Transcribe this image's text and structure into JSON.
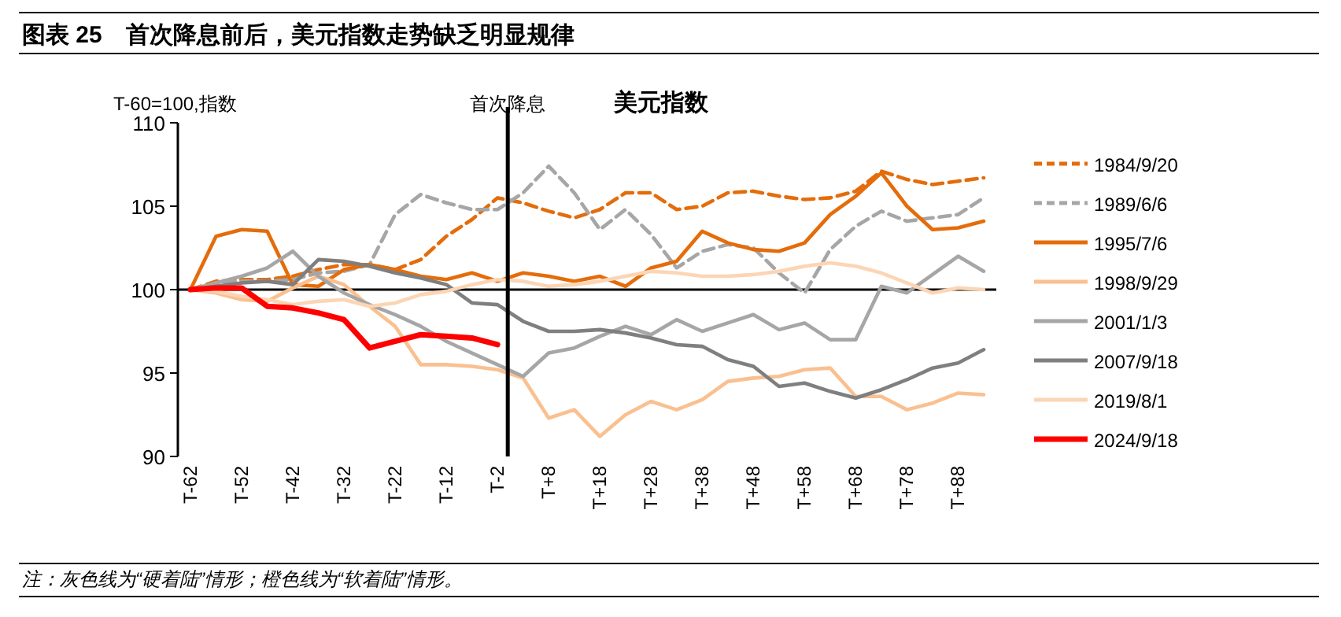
{
  "chart_data": {
    "type": "line",
    "title": "图表 25　首次降息前后，美元指数走势缺乏明显规律",
    "subtitle": "美元指数",
    "ylabel": "T-60=100,指数",
    "annotations": [
      "首次降息",
      "注：灰色线为“硬着陆”情形；橙色线为“软着陆”情形。"
    ],
    "ylim": [
      90,
      110
    ],
    "yticks": [
      90,
      95,
      100,
      105,
      110
    ],
    "categories": [
      "T-62",
      null,
      "T-52",
      null,
      "T-42",
      null,
      "T-32",
      null,
      "T-22",
      null,
      "T-12",
      null,
      "T-2",
      null,
      "T+8",
      null,
      "T+18",
      null,
      "T+28",
      null,
      "T+38",
      null,
      "T+48",
      null,
      "T+58",
      null,
      "T+68",
      null,
      "T+78",
      null,
      "T+88",
      null
    ],
    "ref_lines": [
      {
        "axis": "y",
        "value": 100,
        "color": "#000000"
      }
    ],
    "legend": "right",
    "series": [
      {
        "name": "1984/9/20",
        "color": "#e46c0a",
        "line_style": "dashed",
        "values": [
          100,
          100.5,
          100.6,
          100.6,
          100.8,
          101.2,
          101.5,
          101.5,
          101.2,
          101.8,
          103.2,
          104.2,
          105.5,
          105.2,
          104.7,
          104.3,
          104.8,
          105.8,
          105.8,
          104.8,
          105,
          105.8,
          105.9,
          105.6,
          105.4,
          105.5,
          105.9,
          107.1,
          106.6,
          106.3,
          106.5,
          106.7
        ]
      },
      {
        "name": "1989/6/6",
        "color": "#a6a6a6",
        "line_style": "dashed",
        "values": [
          100,
          100.4,
          100.5,
          100.5,
          100.6,
          101,
          101.1,
          101.5,
          104.5,
          105.7,
          105.2,
          104.8,
          104.8,
          105.8,
          107.4,
          105.8,
          103.6,
          104.8,
          103.3,
          101.3,
          102.3,
          102.7,
          102.5,
          101,
          99.8,
          102.4,
          103.8,
          104.7,
          104.1,
          104.3,
          104.5,
          105.5
        ]
      },
      {
        "name": "1995/7/6",
        "color": "#e46c0a",
        "line_style": "solid",
        "values": [
          100,
          103.2,
          103.6,
          103.5,
          100.3,
          100.2,
          101.2,
          101.5,
          101.2,
          100.8,
          100.6,
          101,
          100.5,
          101,
          100.8,
          100.5,
          100.8,
          100.2,
          101.3,
          101.7,
          103.5,
          102.8,
          102.4,
          102.3,
          102.8,
          104.5,
          105.6,
          107,
          105,
          103.6,
          103.7,
          104.1
        ]
      },
      {
        "name": "1998/9/29",
        "color": "#fac090",
        "line_style": "solid",
        "values": [
          100,
          99.8,
          99.4,
          99.3,
          100.1,
          100.8,
          100.3,
          99,
          97.8,
          95.5,
          95.5,
          95.4,
          95.2,
          94.7,
          92.3,
          92.8,
          91.2,
          92.5,
          93.3,
          92.8,
          93.4,
          94.5,
          94.7,
          94.8,
          95.2,
          95.3,
          93.6,
          93.6,
          92.8,
          93.2,
          93.8,
          93.7
        ]
      },
      {
        "name": "2001/1/3",
        "color": "#a6a6a6",
        "line_style": "solid",
        "values": [
          100,
          100.4,
          100.8,
          101.3,
          102.3,
          100.8,
          99.8,
          99.1,
          98.5,
          97.8,
          96.9,
          96.2,
          95.5,
          94.8,
          96.2,
          96.5,
          97.2,
          97.8,
          97.3,
          98.2,
          97.5,
          98,
          98.5,
          97.6,
          98,
          97,
          97,
          100.2,
          99.8,
          100.9,
          102,
          101.1
        ]
      },
      {
        "name": "2007/9/18",
        "color": "#7f7f7f",
        "line_style": "solid",
        "values": [
          100,
          100.2,
          100.4,
          100.5,
          100.3,
          101.8,
          101.7,
          101.4,
          101,
          100.7,
          100.3,
          99.2,
          99.1,
          98.1,
          97.5,
          97.5,
          97.6,
          97.4,
          97.1,
          96.7,
          96.6,
          95.8,
          95.4,
          94.2,
          94.4,
          93.9,
          93.5,
          94,
          94.6,
          95.3,
          95.6,
          96.4
        ]
      },
      {
        "name": "2019/8/1",
        "color": "#fcd5b5",
        "line_style": "solid",
        "values": [
          100,
          99.9,
          99.6,
          99.4,
          99.1,
          99.3,
          99.4,
          99,
          99.2,
          99.7,
          99.9,
          100.3,
          100.6,
          100.5,
          100.2,
          100.3,
          100.5,
          100.8,
          101.1,
          101,
          100.8,
          100.8,
          100.9,
          101.1,
          101.4,
          101.6,
          101.4,
          101,
          100.4,
          99.8,
          100.1,
          100
        ]
      },
      {
        "name": "2024/9/18",
        "color": "#ff0000",
        "line_style": "solid",
        "values": [
          100,
          100.1,
          100.1,
          99,
          98.9,
          98.6,
          98.2,
          96.5,
          96.9,
          97.3,
          97.2,
          97.1,
          96.7,
          null,
          null,
          null,
          null,
          null,
          null,
          null,
          null,
          null,
          null,
          null,
          null,
          null,
          null,
          null,
          null,
          null,
          null,
          null
        ]
      }
    ]
  }
}
